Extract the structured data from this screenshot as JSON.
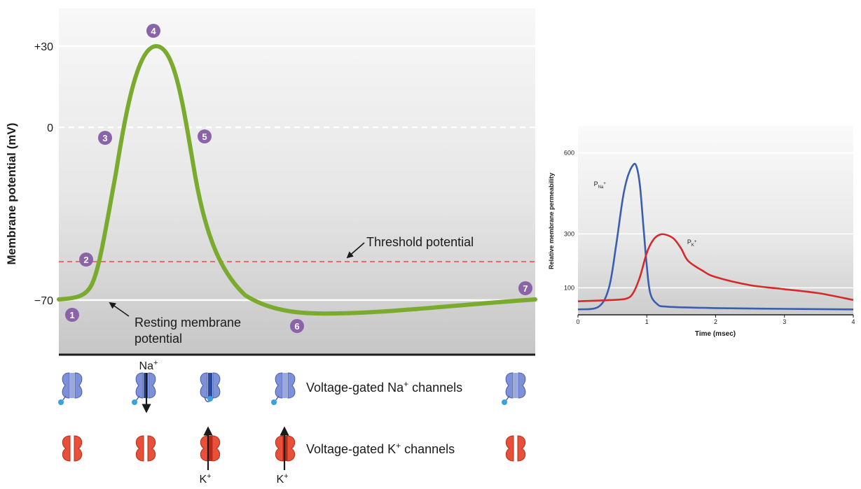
{
  "action_potential": {
    "y_axis_label": "Membrane potential (mV)",
    "y_ticks": [
      "+30",
      "0",
      "−70"
    ],
    "threshold_label": "Threshold potential",
    "resting_label_line1": "Resting membrane",
    "resting_label_line2": "potential",
    "stage_markers": [
      "1",
      "2",
      "3",
      "4",
      "5",
      "6",
      "7"
    ],
    "curve_color": "#7aab2e",
    "threshold_color": "#e05050",
    "marker_color": "#8a63a8"
  },
  "channels": {
    "na_label": "Voltage-gated Na",
    "na_sup": "+",
    "na_suffix": " channels",
    "k_label": "Voltage-gated K",
    "k_sup": "+",
    "k_suffix": " channels",
    "na_ion_base": "Na",
    "na_ion_sup": "+",
    "k_ion_base": "K",
    "k_ion_sup": "+",
    "na_channel_color": "#7d90d8",
    "k_channel_color": "#e8503a",
    "na_channel_icons": [
      "na-closed",
      "na-open",
      "na-inactivated",
      "na-closed",
      "na-closed"
    ],
    "k_channel_icons": [
      "k-closed",
      "k-closed",
      "k-open",
      "k-open",
      "k-closed"
    ]
  },
  "chart_data": {
    "type": "line",
    "xlabel": "Time (msec)",
    "ylabel": "Relative membrane permeability",
    "x_ticks": [
      "0",
      "1",
      "2",
      "3",
      "4"
    ],
    "y_ticks": [
      "600",
      "300",
      "100"
    ],
    "xlim": [
      0,
      4
    ],
    "ylim": [
      0,
      700
    ],
    "series": [
      {
        "name": "P_Na+",
        "label_base": "P",
        "label_sub": "Na",
        "label_sup": "+",
        "color": "#3a5db0",
        "x": [
          0,
          0.3,
          0.45,
          0.55,
          0.65,
          0.72,
          0.8,
          0.85,
          0.9,
          0.95,
          1.0,
          1.05,
          1.15,
          1.3,
          2,
          3,
          4
        ],
        "y": [
          20,
          30,
          100,
          250,
          430,
          510,
          555,
          550,
          480,
          330,
          180,
          80,
          40,
          30,
          25,
          22,
          20
        ]
      },
      {
        "name": "P_K+",
        "label_base": "P",
        "label_sub": "K",
        "label_sup": "+",
        "color": "#d42a2a",
        "x": [
          0,
          0.5,
          0.7,
          0.8,
          0.9,
          1.0,
          1.1,
          1.2,
          1.3,
          1.4,
          1.5,
          1.6,
          1.8,
          2,
          2.5,
          3,
          3.5,
          4
        ],
        "y": [
          50,
          55,
          60,
          80,
          140,
          230,
          280,
          298,
          295,
          280,
          245,
          200,
          165,
          140,
          110,
          95,
          80,
          55
        ]
      }
    ]
  }
}
